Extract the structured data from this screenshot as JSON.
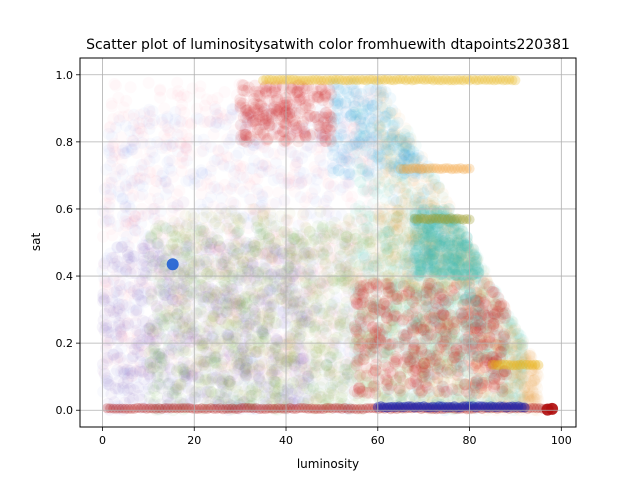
{
  "chart_data": {
    "type": "scatter",
    "title": "Scatter plot of luminositysatwith color fromhuewith dtapoints220381",
    "xlabel": "luminosity",
    "ylabel": "sat",
    "xlim": [
      -4.9,
      103.2
    ],
    "ylim": [
      -0.05,
      1.05
    ],
    "xticks": [
      0,
      20,
      40,
      60,
      80,
      100
    ],
    "yticks": [
      0.0,
      0.2,
      0.4,
      0.6,
      0.8,
      1.0
    ],
    "grid": true,
    "legend": "none",
    "point_count": 220381,
    "colors": {
      "pink": "#f27a8a",
      "blue": "#4a6fd6",
      "purple": "#7a4fb5",
      "green": "#4f9a2f",
      "olive": "#9a9a2a",
      "teal": "#3fbfb5",
      "cyan": "#35aee0",
      "orange": "#f2a135",
      "gold": "#e8b312",
      "red": "#cc1a1a",
      "navy": "#1a24b0",
      "darkred": "#b01010",
      "royal": "#1f5fd1"
    },
    "clusters": [
      {
        "color": "pink",
        "x_range": [
          0,
          60
        ],
        "y_range": [
          0.1,
          0.98
        ],
        "alpha": 0.035,
        "n": 900
      },
      {
        "color": "blue",
        "x_range": [
          0,
          55
        ],
        "y_range": [
          0.0,
          0.9
        ],
        "alpha": 0.035,
        "n": 700
      },
      {
        "color": "purple",
        "x_range": [
          0,
          45
        ],
        "y_range": [
          0.0,
          0.5
        ],
        "alpha": 0.06,
        "n": 600
      },
      {
        "color": "green",
        "x_range": [
          10,
          80
        ],
        "y_range": [
          0.0,
          0.55
        ],
        "alpha": 0.05,
        "n": 900
      },
      {
        "color": "olive",
        "x_range": [
          15,
          75
        ],
        "y_range": [
          0.0,
          0.6
        ],
        "alpha": 0.05,
        "n": 700
      },
      {
        "color": "teal",
        "x_range": [
          55,
          92
        ],
        "y_range": [
          0.15,
          0.9
        ],
        "alpha": 0.05,
        "n": 700
      },
      {
        "color": "orange",
        "x_range": [
          60,
          95
        ],
        "y_range": [
          0.35,
          1.0
        ],
        "alpha": 0.05,
        "n": 700
      },
      {
        "color": "cyan",
        "x_range": [
          50,
          75
        ],
        "y_range": [
          0.7,
          0.99
        ],
        "alpha": 0.07,
        "n": 300
      },
      {
        "color": "red",
        "x_range": [
          30,
          50
        ],
        "y_range": [
          0.8,
          0.97
        ],
        "alpha": 0.08,
        "n": 250
      },
      {
        "color": "red",
        "x_range": [
          55,
          88
        ],
        "y_range": [
          0.05,
          0.38
        ],
        "alpha": 0.1,
        "n": 450
      },
      {
        "color": "teal",
        "x_range": [
          68,
          82
        ],
        "y_range": [
          0.4,
          0.6
        ],
        "alpha": 0.12,
        "n": 250
      }
    ],
    "lines": [
      {
        "color": "gold",
        "x_range": [
          35,
          90
        ],
        "y": 0.985,
        "alpha": 0.25
      },
      {
        "color": "darkred",
        "x_range": [
          1,
          98
        ],
        "y": 0.005,
        "alpha": 0.25
      },
      {
        "color": "navy",
        "x_range": [
          60,
          92
        ],
        "y": 0.01,
        "alpha": 0.45
      },
      {
        "color": "orange",
        "x_range": [
          65,
          80
        ],
        "y": 0.72,
        "alpha": 0.25
      },
      {
        "color": "olive",
        "x_range": [
          68,
          80
        ],
        "y": 0.57,
        "alpha": 0.3
      },
      {
        "color": "gold",
        "x_range": [
          85,
          95
        ],
        "y": 0.135,
        "alpha": 0.3
      }
    ],
    "highlight_points": [
      {
        "x": 15.3,
        "y": 0.435,
        "color": "royal"
      },
      {
        "x": 97,
        "y": 0.002,
        "color": "darkred"
      },
      {
        "x": 98,
        "y": 0.004,
        "color": "darkred"
      }
    ]
  }
}
